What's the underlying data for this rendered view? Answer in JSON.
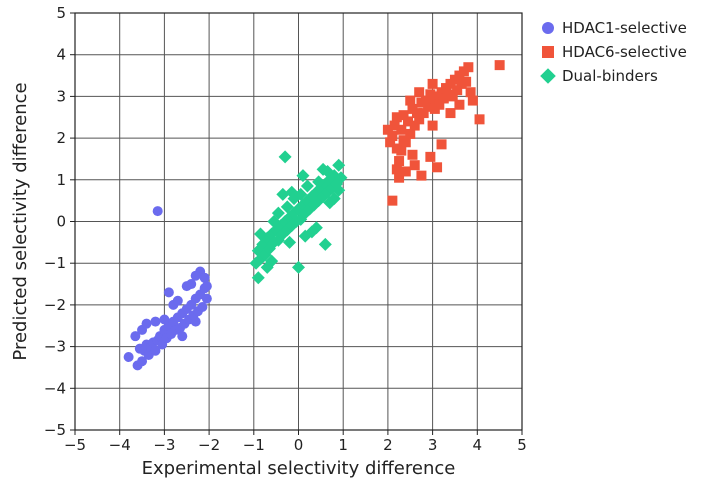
{
  "chart_data": {
    "type": "scatter",
    "xlabel": "Experimental selectivity difference",
    "ylabel": "Predicted selectivity difference",
    "xlim": [
      -5,
      5
    ],
    "ylim": [
      -5,
      5
    ],
    "xticks": [
      "−5",
      "−4",
      "−3",
      "−2",
      "−1",
      "0",
      "1",
      "2",
      "3",
      "4",
      "5"
    ],
    "yticks": [
      "−5",
      "−4",
      "−3",
      "−2",
      "−1",
      "0",
      "1",
      "2",
      "3",
      "4",
      "5"
    ],
    "grid": true,
    "legend_position": "top-right",
    "series": [
      {
        "name": "HDAC1-selective",
        "marker": "circle",
        "color": "#6b6bee",
        "points": [
          [
            -3.15,
            0.25
          ],
          [
            -3.8,
            -3.25
          ],
          [
            -3.6,
            -3.45
          ],
          [
            -3.55,
            -3.05
          ],
          [
            -3.5,
            -3.35
          ],
          [
            -3.45,
            -3.1
          ],
          [
            -3.4,
            -2.95
          ],
          [
            -3.35,
            -3.2
          ],
          [
            -3.3,
            -3.0
          ],
          [
            -3.25,
            -2.9
          ],
          [
            -3.2,
            -3.1
          ],
          [
            -3.15,
            -2.85
          ],
          [
            -3.1,
            -2.75
          ],
          [
            -3.05,
            -2.95
          ],
          [
            -3.0,
            -2.6
          ],
          [
            -2.95,
            -2.8
          ],
          [
            -2.9,
            -2.5
          ],
          [
            -2.85,
            -2.7
          ],
          [
            -2.8,
            -2.4
          ],
          [
            -2.75,
            -2.6
          ],
          [
            -2.7,
            -2.3
          ],
          [
            -2.65,
            -2.55
          ],
          [
            -2.6,
            -2.2
          ],
          [
            -2.55,
            -2.45
          ],
          [
            -2.5,
            -2.1
          ],
          [
            -2.45,
            -2.35
          ],
          [
            -2.4,
            -2.0
          ],
          [
            -2.35,
            -2.25
          ],
          [
            -2.3,
            -1.85
          ],
          [
            -2.25,
            -2.15
          ],
          [
            -2.2,
            -1.75
          ],
          [
            -2.15,
            -2.05
          ],
          [
            -2.1,
            -1.6
          ],
          [
            -2.05,
            -1.85
          ],
          [
            -2.2,
            -1.2
          ],
          [
            -2.1,
            -1.35
          ],
          [
            -2.3,
            -1.3
          ],
          [
            -2.05,
            -1.55
          ],
          [
            -2.9,
            -1.7
          ],
          [
            -2.8,
            -2.0
          ],
          [
            -3.5,
            -2.6
          ],
          [
            -3.65,
            -2.75
          ],
          [
            -3.4,
            -2.45
          ],
          [
            -3.0,
            -2.35
          ],
          [
            -2.7,
            -1.9
          ],
          [
            -2.5,
            -1.55
          ],
          [
            -2.4,
            -1.5
          ],
          [
            -2.6,
            -2.75
          ],
          [
            -2.3,
            -2.4
          ],
          [
            -3.2,
            -2.4
          ]
        ]
      },
      {
        "name": "HDAC6-selective",
        "marker": "square",
        "color": "#f0543a",
        "points": [
          [
            2.1,
            0.5
          ],
          [
            2.2,
            1.25
          ],
          [
            2.25,
            1.45
          ],
          [
            2.3,
            1.7
          ],
          [
            2.4,
            1.9
          ],
          [
            2.5,
            2.1
          ],
          [
            2.6,
            2.3
          ],
          [
            2.7,
            2.45
          ],
          [
            2.8,
            2.6
          ],
          [
            2.9,
            2.75
          ],
          [
            3.0,
            2.85
          ],
          [
            3.1,
            3.0
          ],
          [
            3.2,
            3.1
          ],
          [
            3.3,
            3.2
          ],
          [
            3.4,
            3.3
          ],
          [
            3.5,
            3.4
          ],
          [
            3.6,
            3.5
          ],
          [
            3.7,
            3.6
          ],
          [
            2.0,
            2.2
          ],
          [
            2.05,
            1.9
          ],
          [
            2.1,
            2.05
          ],
          [
            2.15,
            2.3
          ],
          [
            2.2,
            2.5
          ],
          [
            2.3,
            2.2
          ],
          [
            2.35,
            2.55
          ],
          [
            2.45,
            2.4
          ],
          [
            2.55,
            2.7
          ],
          [
            2.65,
            2.6
          ],
          [
            2.75,
            2.85
          ],
          [
            2.85,
            2.9
          ],
          [
            2.95,
            3.05
          ],
          [
            3.05,
            2.7
          ],
          [
            3.15,
            2.8
          ],
          [
            3.25,
            2.95
          ],
          [
            3.35,
            3.05
          ],
          [
            3.45,
            3.0
          ],
          [
            3.55,
            3.15
          ],
          [
            3.65,
            3.3
          ],
          [
            3.75,
            3.35
          ],
          [
            3.8,
            3.7
          ],
          [
            3.85,
            3.1
          ],
          [
            3.9,
            2.9
          ],
          [
            4.05,
            2.45
          ],
          [
            4.5,
            3.75
          ],
          [
            3.2,
            1.85
          ],
          [
            2.95,
            1.55
          ],
          [
            3.1,
            1.3
          ],
          [
            2.75,
            1.1
          ],
          [
            2.25,
            1.05
          ],
          [
            2.4,
            1.2
          ],
          [
            2.55,
            1.6
          ],
          [
            2.6,
            1.35
          ],
          [
            2.2,
            1.75
          ],
          [
            2.35,
            1.95
          ],
          [
            3.0,
            2.3
          ],
          [
            3.4,
            2.6
          ],
          [
            3.6,
            2.8
          ],
          [
            2.5,
            2.9
          ],
          [
            2.7,
            3.1
          ],
          [
            3.0,
            3.3
          ]
        ]
      },
      {
        "name": "Dual-binders",
        "marker": "diamond",
        "color": "#21d090",
        "points": [
          [
            -0.9,
            -1.35
          ],
          [
            -0.95,
            -1.0
          ],
          [
            -0.9,
            -0.7
          ],
          [
            -0.85,
            -0.9
          ],
          [
            -0.8,
            -0.55
          ],
          [
            -0.75,
            -0.8
          ],
          [
            -0.7,
            -0.4
          ],
          [
            -0.65,
            -0.65
          ],
          [
            -0.6,
            -0.3
          ],
          [
            -0.55,
            -0.5
          ],
          [
            -0.5,
            -0.2
          ],
          [
            -0.45,
            -0.45
          ],
          [
            -0.4,
            -0.1
          ],
          [
            -0.35,
            -0.3
          ],
          [
            -0.3,
            0.0
          ],
          [
            -0.25,
            -0.2
          ],
          [
            -0.2,
            0.1
          ],
          [
            -0.15,
            -0.1
          ],
          [
            -0.1,
            0.2
          ],
          [
            -0.05,
            0.0
          ],
          [
            0.0,
            0.3
          ],
          [
            0.05,
            0.05
          ],
          [
            0.1,
            0.4
          ],
          [
            0.15,
            0.2
          ],
          [
            0.2,
            0.5
          ],
          [
            0.25,
            0.3
          ],
          [
            0.3,
            0.6
          ],
          [
            0.35,
            0.4
          ],
          [
            0.4,
            0.7
          ],
          [
            0.45,
            0.5
          ],
          [
            0.5,
            0.8
          ],
          [
            0.55,
            0.6
          ],
          [
            0.6,
            0.9
          ],
          [
            0.65,
            0.7
          ],
          [
            0.7,
            1.0
          ],
          [
            0.75,
            0.8
          ],
          [
            0.8,
            1.1
          ],
          [
            0.85,
            0.9
          ],
          [
            0.9,
            1.35
          ],
          [
            0.95,
            1.05
          ],
          [
            -0.3,
            1.55
          ],
          [
            -0.35,
            0.65
          ],
          [
            -0.25,
            0.35
          ],
          [
            0.0,
            -1.1
          ],
          [
            0.6,
            -0.55
          ],
          [
            0.55,
            1.25
          ],
          [
            0.1,
            1.1
          ],
          [
            -0.6,
            -0.95
          ],
          [
            -0.7,
            -1.1
          ],
          [
            0.3,
            -0.25
          ],
          [
            0.4,
            -0.15
          ],
          [
            0.7,
            0.45
          ],
          [
            -0.1,
            0.55
          ],
          [
            0.2,
            0.85
          ],
          [
            -0.45,
            0.2
          ],
          [
            -0.85,
            -0.3
          ],
          [
            -0.2,
            -0.5
          ],
          [
            0.15,
            -0.35
          ],
          [
            0.8,
            0.55
          ],
          [
            0.9,
            0.75
          ],
          [
            -0.55,
            0.0
          ],
          [
            0.45,
            0.95
          ],
          [
            -0.15,
            0.7
          ],
          [
            0.05,
            0.65
          ],
          [
            0.65,
            1.2
          ]
        ]
      }
    ]
  }
}
